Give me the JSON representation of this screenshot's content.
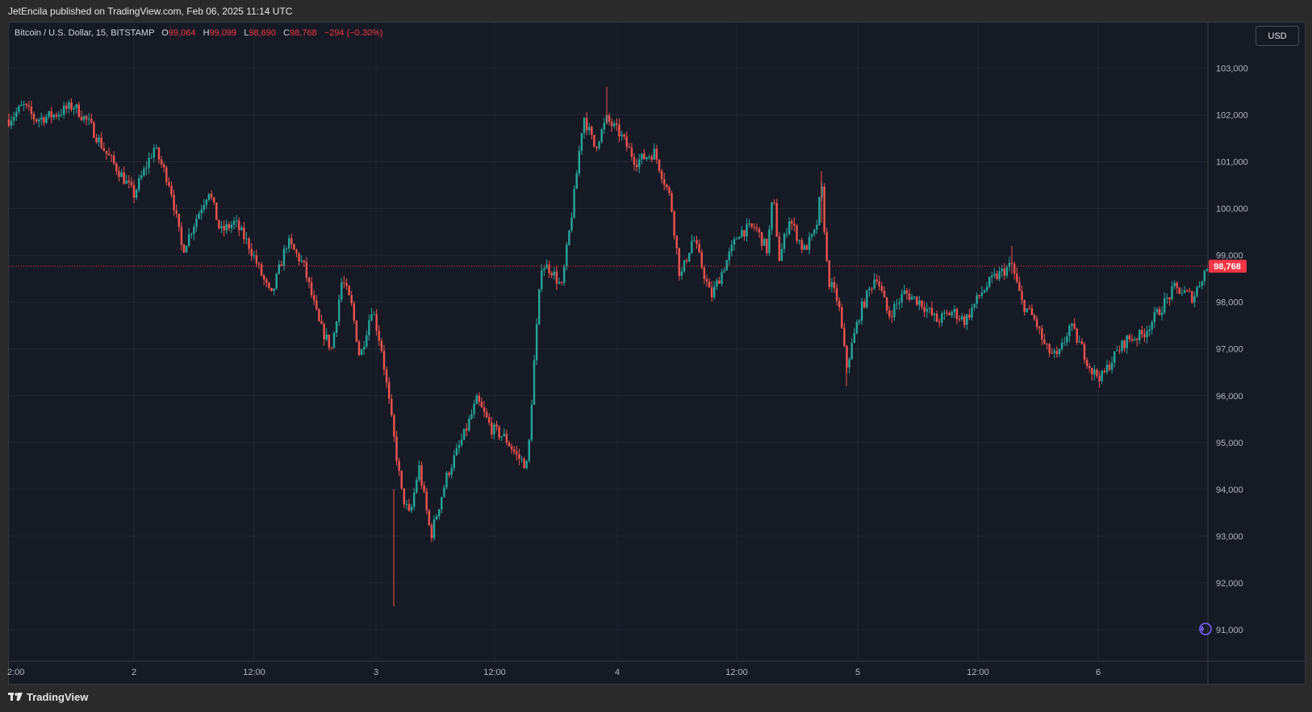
{
  "header": {
    "published_text": "JetEncila published on TradingView.com, Feb 06, 2025 11:14 UTC"
  },
  "legend": {
    "symbol": "Bitcoin / U.S. Dollar, 15, BITSTAMP",
    "open_label": "O",
    "open": "99,064",
    "high_label": "H",
    "high": "99,099",
    "low_label": "L",
    "low": "98,690",
    "close_label": "C",
    "close": "98,768",
    "change": "−294 (−0.30%)"
  },
  "currency_button": "USD",
  "footer": {
    "brand": "TradingView"
  },
  "colors": {
    "up": "#26a69a",
    "down": "#ef5350",
    "background": "#161a25",
    "price_line": "#f23645"
  },
  "chart_data": {
    "type": "candlestick",
    "ylim": [
      90500,
      103800
    ],
    "y_ticks": [
      91000,
      92000,
      93000,
      94000,
      95000,
      96000,
      97000,
      98000,
      99000,
      100000,
      101000,
      102000,
      103000
    ],
    "y_tick_labels": [
      "91,000",
      "92,000",
      "93,000",
      "94,000",
      "95,000",
      "96,000",
      "97,000",
      "98,000",
      "99,000",
      "100,000",
      "101,000",
      "102,000",
      "103,000"
    ],
    "x_tick_labels": [
      "2:00",
      "2",
      "12:00",
      "3",
      "12:00",
      "4",
      "12:00",
      "5",
      "12:00",
      "6"
    ],
    "current_price": 98768,
    "current_price_label": "98,768",
    "price_path": [
      {
        "t": 0,
        "p": 101900
      },
      {
        "t": 18,
        "p": 102200
      },
      {
        "t": 33,
        "p": 101900
      },
      {
        "t": 56,
        "p": 102000
      },
      {
        "t": 80,
        "p": 102200
      },
      {
        "t": 100,
        "p": 101800
      },
      {
        "t": 120,
        "p": 101200
      },
      {
        "t": 140,
        "p": 100700
      },
      {
        "t": 155,
        "p": 100300
      },
      {
        "t": 180,
        "p": 101300
      },
      {
        "t": 200,
        "p": 100500
      },
      {
        "t": 215,
        "p": 99100
      },
      {
        "t": 235,
        "p": 99900
      },
      {
        "t": 248,
        "p": 100400
      },
      {
        "t": 262,
        "p": 99500
      },
      {
        "t": 280,
        "p": 99700
      },
      {
        "t": 298,
        "p": 99200
      },
      {
        "t": 325,
        "p": 98100
      },
      {
        "t": 345,
        "p": 99300
      },
      {
        "t": 365,
        "p": 98800
      },
      {
        "t": 385,
        "p": 97500
      },
      {
        "t": 400,
        "p": 97000
      },
      {
        "t": 413,
        "p": 98500
      },
      {
        "t": 425,
        "p": 97900
      },
      {
        "t": 435,
        "p": 96800
      },
      {
        "t": 450,
        "p": 97900
      },
      {
        "t": 462,
        "p": 97000
      },
      {
        "t": 478,
        "p": 95000
      },
      {
        "t": 487,
        "p": 93900
      },
      {
        "t": 497,
        "p": 93400
      },
      {
        "t": 508,
        "p": 94500
      },
      {
        "t": 523,
        "p": 93000
      },
      {
        "t": 543,
        "p": 94300
      },
      {
        "t": 565,
        "p": 95200
      },
      {
        "t": 580,
        "p": 95900
      },
      {
        "t": 598,
        "p": 95300
      },
      {
        "t": 615,
        "p": 95100
      },
      {
        "t": 630,
        "p": 94700
      },
      {
        "t": 643,
        "p": 94500
      },
      {
        "t": 650,
        "p": 96500
      },
      {
        "t": 660,
        "p": 98800
      },
      {
        "t": 672,
        "p": 98700
      },
      {
        "t": 685,
        "p": 98300
      },
      {
        "t": 700,
        "p": 100200
      },
      {
        "t": 712,
        "p": 102000
      },
      {
        "t": 726,
        "p": 101300
      },
      {
        "t": 741,
        "p": 101900
      },
      {
        "t": 757,
        "p": 101600
      },
      {
        "t": 777,
        "p": 101000
      },
      {
        "t": 800,
        "p": 101200
      },
      {
        "t": 820,
        "p": 100200
      },
      {
        "t": 832,
        "p": 98500
      },
      {
        "t": 848,
        "p": 99400
      },
      {
        "t": 870,
        "p": 98100
      },
      {
        "t": 885,
        "p": 98700
      },
      {
        "t": 905,
        "p": 99500
      },
      {
        "t": 925,
        "p": 99600
      },
      {
        "t": 940,
        "p": 99100
      },
      {
        "t": 947,
        "p": 100300
      },
      {
        "t": 955,
        "p": 98900
      },
      {
        "t": 967,
        "p": 99800
      },
      {
        "t": 985,
        "p": 99100
      },
      {
        "t": 1000,
        "p": 99500
      },
      {
        "t": 1007,
        "p": 100500
      },
      {
        "t": 1015,
        "p": 98500
      },
      {
        "t": 1028,
        "p": 98000
      },
      {
        "t": 1038,
        "p": 96600
      },
      {
        "t": 1055,
        "p": 97800
      },
      {
        "t": 1075,
        "p": 98600
      },
      {
        "t": 1090,
        "p": 97700
      },
      {
        "t": 1110,
        "p": 98200
      },
      {
        "t": 1130,
        "p": 98000
      },
      {
        "t": 1150,
        "p": 97600
      },
      {
        "t": 1170,
        "p": 97800
      },
      {
        "t": 1185,
        "p": 97600
      },
      {
        "t": 1205,
        "p": 98200
      },
      {
        "t": 1220,
        "p": 98500
      },
      {
        "t": 1243,
        "p": 98800
      },
      {
        "t": 1255,
        "p": 98000
      },
      {
        "t": 1272,
        "p": 97600
      },
      {
        "t": 1285,
        "p": 97000
      },
      {
        "t": 1300,
        "p": 96800
      },
      {
        "t": 1315,
        "p": 97500
      },
      {
        "t": 1330,
        "p": 97000
      },
      {
        "t": 1343,
        "p": 96500
      },
      {
        "t": 1355,
        "p": 96400
      },
      {
        "t": 1368,
        "p": 96800
      },
      {
        "t": 1385,
        "p": 97200
      },
      {
        "t": 1405,
        "p": 97300
      },
      {
        "t": 1425,
        "p": 97800
      },
      {
        "t": 1445,
        "p": 98300
      },
      {
        "t": 1468,
        "p": 98100
      },
      {
        "t": 1480,
        "p": 98600
      },
      {
        "t": 1488,
        "p": 98800
      }
    ]
  }
}
